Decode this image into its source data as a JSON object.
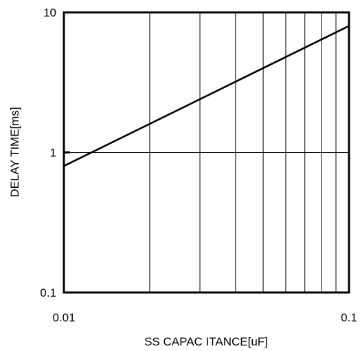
{
  "chart_data": {
    "type": "line",
    "xlabel": "SS CAPAC ITANCE[uF]",
    "ylabel": "DELAY TIME[ms]",
    "x_scale": "log",
    "y_scale": "log",
    "xlim": [
      0.01,
      0.1
    ],
    "ylim": [
      0.1,
      10
    ],
    "x_ticks": [
      {
        "value": 0.01,
        "label": "0.01"
      },
      {
        "value": 0.1,
        "label": "0.1"
      }
    ],
    "y_ticks": [
      {
        "value": 0.1,
        "label": "0.1"
      },
      {
        "value": 1,
        "label": "1"
      },
      {
        "value": 10,
        "label": "10"
      }
    ],
    "x_minor_gridlines": [
      0.02,
      0.03,
      0.04,
      0.05,
      0.06,
      0.07,
      0.08,
      0.09
    ],
    "y_major_gridlines": [
      1
    ],
    "grid": true,
    "series": [
      {
        "x": [
          0.01,
          0.1
        ],
        "y": [
          0.8,
          8
        ],
        "color": "#000000"
      }
    ]
  }
}
